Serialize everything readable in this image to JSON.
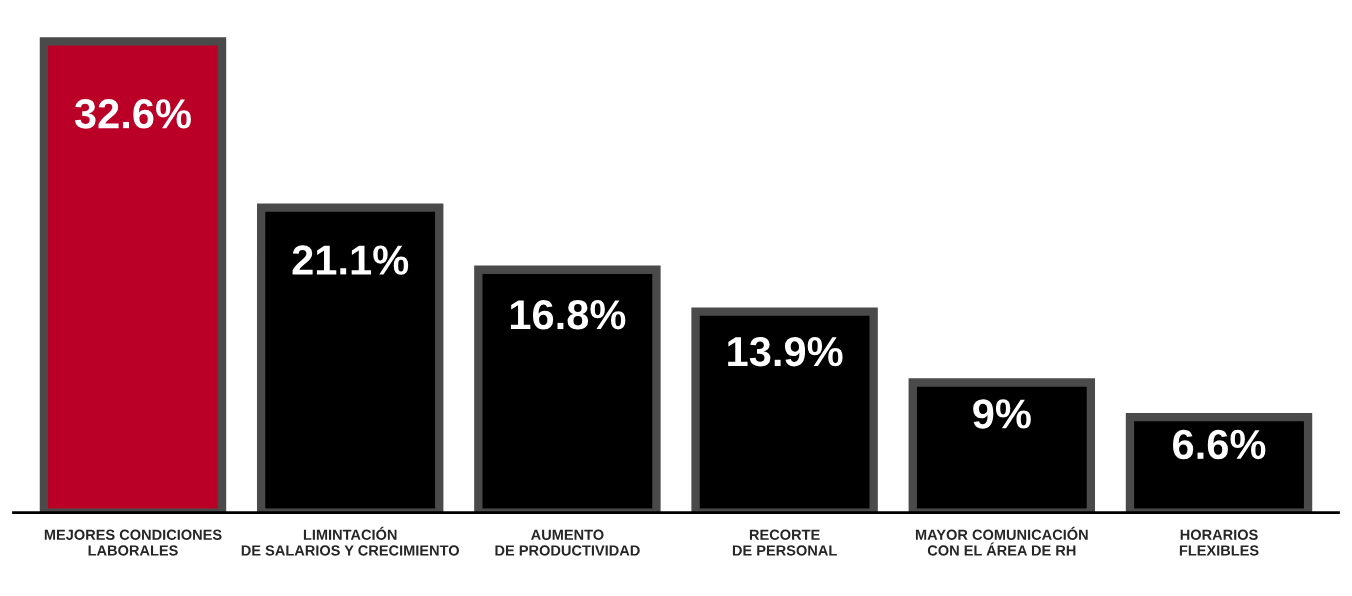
{
  "chart_data": {
    "type": "bar",
    "categories": [
      "MEJORES CONDICIONES\nLABORALES",
      "LIMINTACIÓN\nDE SALARIOS Y CRECIMIENTO",
      "AUMENTO\nDE PRODUCTIVIDAD",
      "RECORTE\nDE PERSONAL",
      "MAYOR COMUNICACIÓN\nCON EL ÁREA DE RH",
      "HORARIOS\nFLEXIBLES"
    ],
    "values": [
      32.6,
      21.1,
      16.8,
      13.9,
      9,
      6.6
    ],
    "colors": [
      "#bb0028",
      "#000000",
      "#000000",
      "#000000",
      "#000000",
      "#000000"
    ],
    "value_labels": [
      "32.6%",
      "21.1%",
      "16.8%",
      "13.9%",
      "9%",
      "6.6%"
    ],
    "grid": false,
    "legend": false
  }
}
